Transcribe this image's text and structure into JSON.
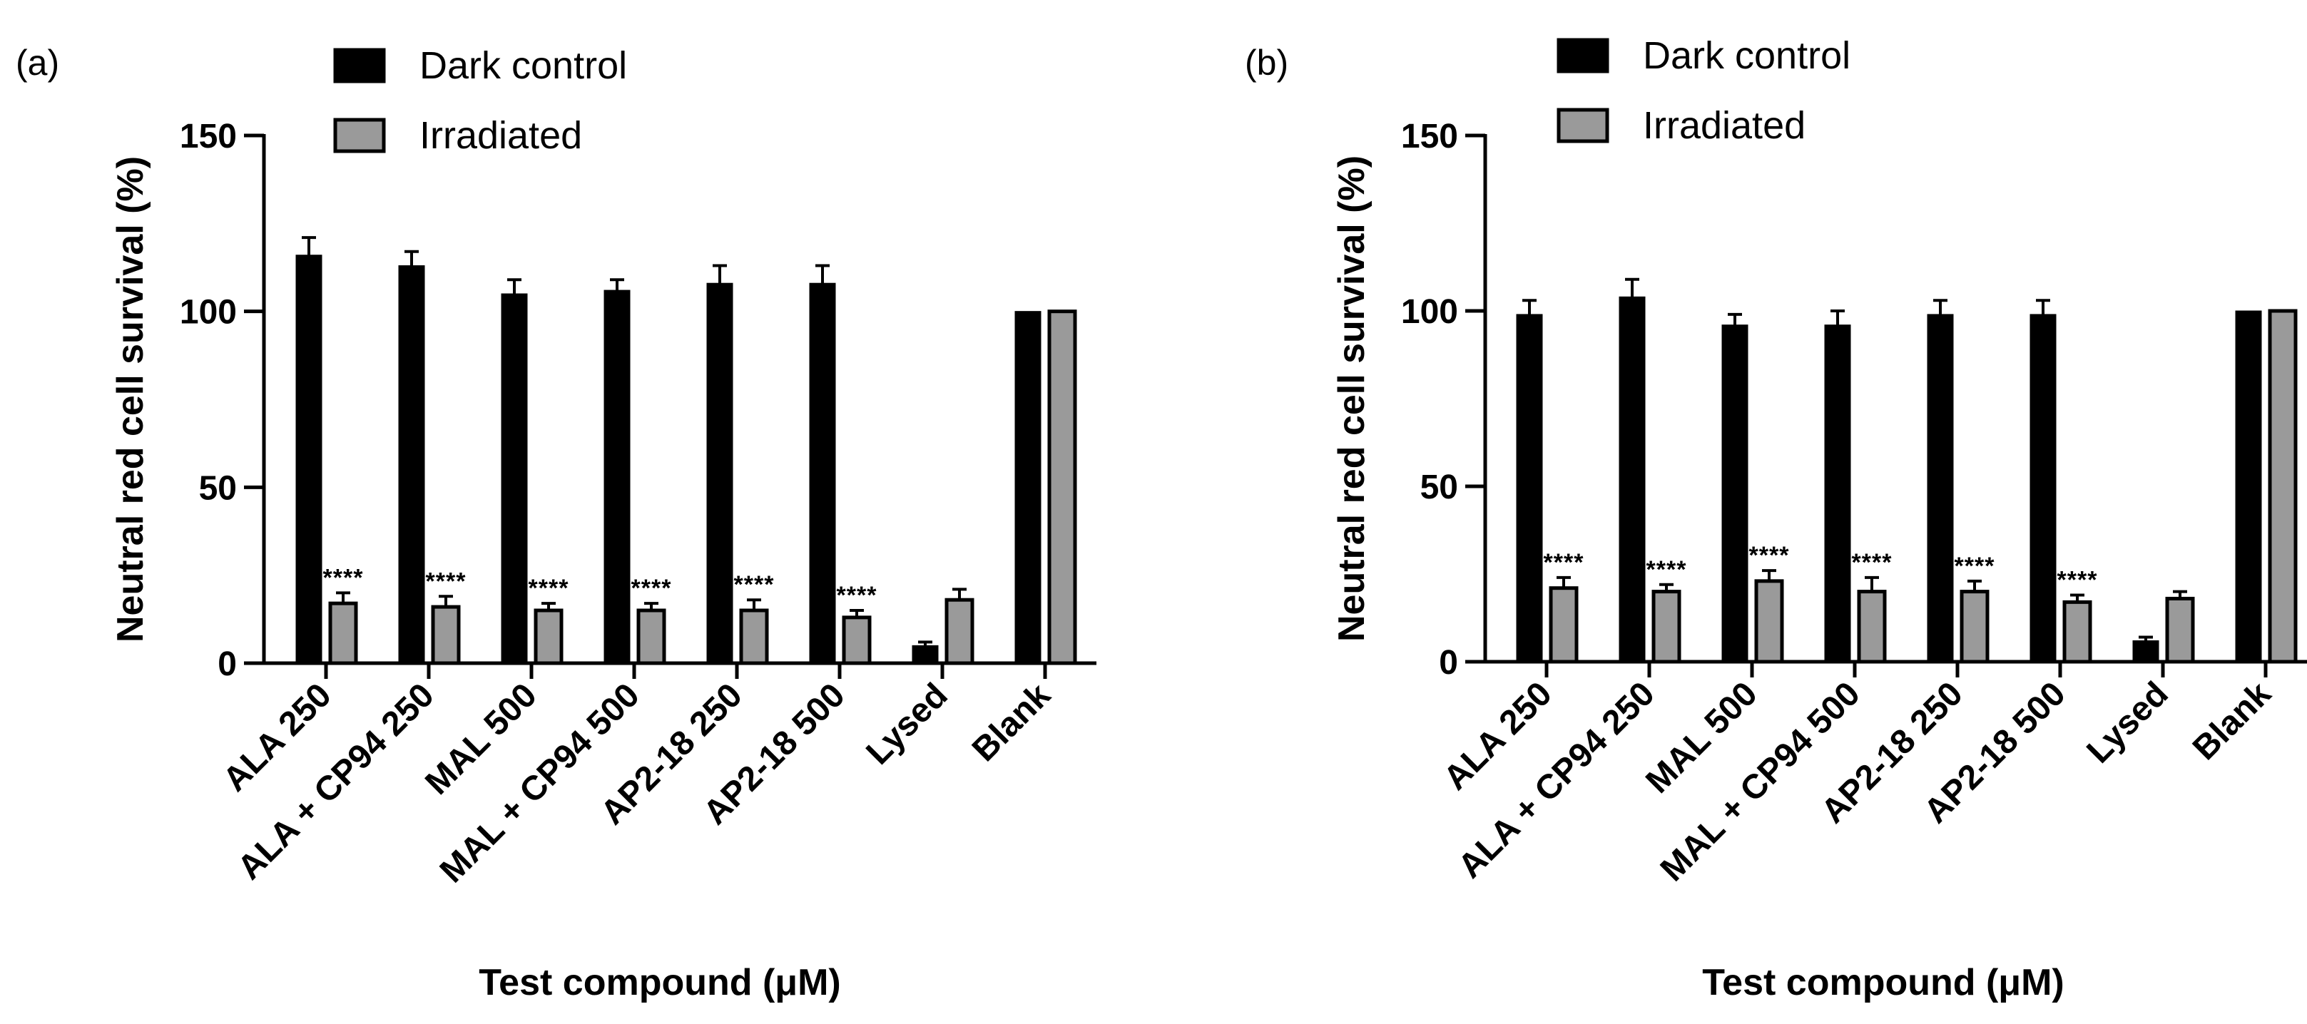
{
  "colors": {
    "dark": "#000000",
    "irradiated": "#9a9a9a",
    "axis": "#000000",
    "significance": "#000000"
  },
  "chart_data": [
    {
      "panel": "(a)",
      "type": "bar",
      "xlabel": "Test compound (μM)",
      "ylabel": "Neutral red cell survival (%)",
      "ylim": [
        0,
        150
      ],
      "yticks": [
        0,
        50,
        100,
        150
      ],
      "categories": [
        "ALA 250",
        "ALA + CP94 250",
        "MAL 500",
        "MAL + CP94 500",
        "AP2-18 250",
        "AP2-18 500",
        "Lysed",
        "Blank"
      ],
      "legend": [
        "Dark control",
        "Irradiated"
      ],
      "series": [
        {
          "name": "Dark control",
          "values": [
            116,
            113,
            105,
            106,
            108,
            108,
            5,
            100
          ],
          "errors": [
            5,
            4,
            4,
            3,
            5,
            5,
            1,
            0
          ]
        },
        {
          "name": "Irradiated",
          "values": [
            17,
            16,
            15,
            15,
            15,
            13,
            18,
            100
          ],
          "errors": [
            3,
            3,
            2,
            2,
            3,
            2,
            3,
            0
          ]
        }
      ],
      "significance": [
        "****",
        "****",
        "****",
        "****",
        "****",
        "****",
        "",
        ""
      ]
    },
    {
      "panel": "(b)",
      "type": "bar",
      "xlabel": "Test compound (μM)",
      "ylabel": "Neutral red cell survival (%)",
      "ylim": [
        0,
        150
      ],
      "yticks": [
        0,
        50,
        100,
        150
      ],
      "categories": [
        "ALA 250",
        "ALA + CP94 250",
        "MAL 500",
        "MAL + CP94 500",
        "AP2-18 250",
        "AP2-18 500",
        "Lysed",
        "Blank"
      ],
      "legend": [
        "Dark control",
        "Irradiated"
      ],
      "series": [
        {
          "name": "Dark control",
          "values": [
            99,
            104,
            96,
            96,
            99,
            99,
            6,
            100
          ],
          "errors": [
            4,
            5,
            3,
            4,
            4,
            4,
            1,
            0
          ]
        },
        {
          "name": "Irradiated",
          "values": [
            21,
            20,
            23,
            20,
            20,
            17,
            18,
            100
          ],
          "errors": [
            3,
            2,
            3,
            4,
            3,
            2,
            2,
            0
          ]
        }
      ],
      "significance": [
        "****",
        "****",
        "****",
        "****",
        "****",
        "****",
        "",
        ""
      ]
    }
  ]
}
